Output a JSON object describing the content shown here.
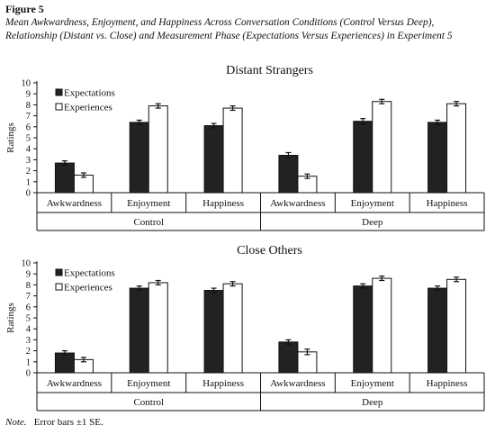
{
  "figure": {
    "label": "Figure 5",
    "caption": "Mean Awkwardness, Enjoyment, and Happiness Across Conversation Conditions (Control Versus Deep), Relationship (Distant vs. Close) and Measurement Phase (Expectations Versus Experiences) in Experiment 5"
  },
  "note": {
    "prefix": "Note.",
    "text": "Error bars ±1 SE."
  },
  "colors": {
    "expectations": "#222222",
    "experiences": "#ffffff",
    "outline": "#111111"
  },
  "chart_data": [
    {
      "type": "bar",
      "title": "Distant Strangers",
      "ylabel": "Ratings",
      "ylim": [
        0,
        10
      ],
      "yticks": [
        0,
        1,
        2,
        3,
        4,
        5,
        6,
        7,
        8,
        9,
        10
      ],
      "legend_position": "top-left",
      "categories": [
        "Awkwardness",
        "Enjoyment",
        "Happiness",
        "Awkwardness",
        "Enjoyment",
        "Happiness"
      ],
      "groups": [
        {
          "label": "Control",
          "span": [
            0,
            2
          ]
        },
        {
          "label": "Deep",
          "span": [
            3,
            5
          ]
        }
      ],
      "series": [
        {
          "name": "Expectations",
          "values": [
            2.7,
            6.4,
            6.1,
            3.4,
            6.5,
            6.4
          ],
          "errors": [
            0.2,
            0.2,
            0.2,
            0.25,
            0.25,
            0.2
          ]
        },
        {
          "name": "Experiences",
          "values": [
            1.6,
            7.9,
            7.7,
            1.5,
            8.3,
            8.1
          ],
          "errors": [
            0.2,
            0.2,
            0.2,
            0.2,
            0.2,
            0.2
          ]
        }
      ]
    },
    {
      "type": "bar",
      "title": "Close Others",
      "ylabel": "Ratings",
      "ylim": [
        0,
        10
      ],
      "yticks": [
        0,
        1,
        2,
        3,
        4,
        5,
        6,
        7,
        8,
        9,
        10
      ],
      "legend_position": "top-left",
      "categories": [
        "Awkwardness",
        "Enjoyment",
        "Happiness",
        "Awkwardness",
        "Enjoyment",
        "Happiness"
      ],
      "groups": [
        {
          "label": "Control",
          "span": [
            0,
            2
          ]
        },
        {
          "label": "Deep",
          "span": [
            3,
            5
          ]
        }
      ],
      "series": [
        {
          "name": "Expectations",
          "values": [
            1.8,
            7.7,
            7.5,
            2.8,
            7.9,
            7.7
          ],
          "errors": [
            0.2,
            0.2,
            0.2,
            0.2,
            0.2,
            0.2
          ]
        },
        {
          "name": "Experiences",
          "values": [
            1.2,
            8.2,
            8.1,
            1.9,
            8.6,
            8.5
          ],
          "errors": [
            0.2,
            0.2,
            0.2,
            0.25,
            0.2,
            0.2
          ]
        }
      ]
    }
  ]
}
